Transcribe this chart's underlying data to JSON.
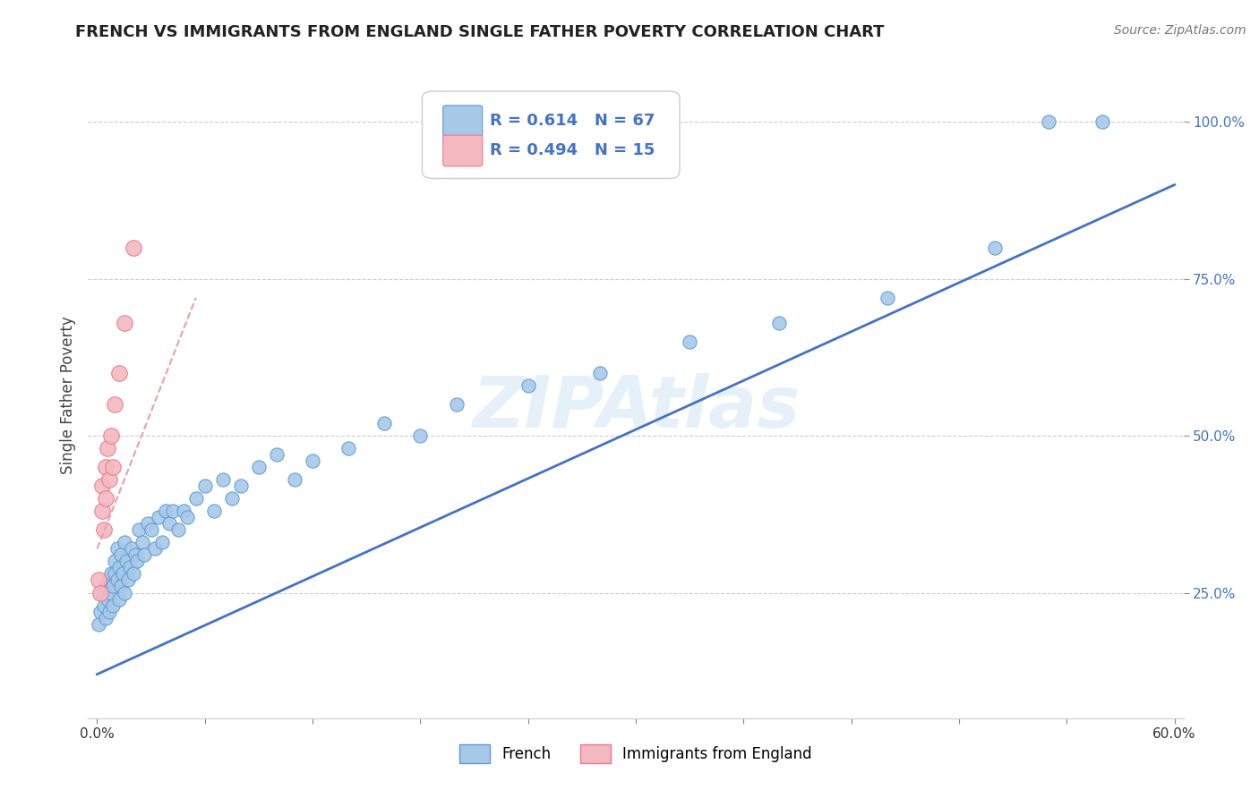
{
  "title": "FRENCH VS IMMIGRANTS FROM ENGLAND SINGLE FATHER POVERTY CORRELATION CHART",
  "source_text": "Source: ZipAtlas.com",
  "ylabel": "Single Father Poverty",
  "watermark": "ZIPAtlas",
  "xlim": [
    -0.005,
    0.605
  ],
  "ylim": [
    0.05,
    1.08
  ],
  "french_color": "#a8c8e8",
  "french_edge_color": "#5b9bd5",
  "pink_color": "#f4b8c1",
  "pink_edge_color": "#e87a8a",
  "trend_blue": "#4472c4",
  "trend_pink": "#e8a0a8",
  "legend_R_blue": "R = 0.614",
  "legend_N_blue": "N = 67",
  "legend_R_pink": "R = 0.494",
  "legend_N_pink": "N = 15",
  "french_x": [
    0.001,
    0.002,
    0.003,
    0.004,
    0.005,
    0.005,
    0.006,
    0.007,
    0.007,
    0.008,
    0.008,
    0.009,
    0.009,
    0.01,
    0.01,
    0.011,
    0.011,
    0.012,
    0.012,
    0.013,
    0.013,
    0.014,
    0.015,
    0.015,
    0.016,
    0.017,
    0.018,
    0.019,
    0.02,
    0.021,
    0.022,
    0.023,
    0.025,
    0.026,
    0.028,
    0.03,
    0.032,
    0.034,
    0.036,
    0.038,
    0.04,
    0.042,
    0.045,
    0.048,
    0.05,
    0.055,
    0.06,
    0.065,
    0.07,
    0.075,
    0.08,
    0.09,
    0.1,
    0.11,
    0.12,
    0.14,
    0.16,
    0.18,
    0.2,
    0.24,
    0.28,
    0.33,
    0.38,
    0.44,
    0.5,
    0.53,
    0.56
  ],
  "french_y": [
    0.2,
    0.22,
    0.25,
    0.23,
    0.21,
    0.26,
    0.24,
    0.22,
    0.27,
    0.25,
    0.28,
    0.26,
    0.23,
    0.28,
    0.3,
    0.27,
    0.32,
    0.24,
    0.29,
    0.31,
    0.26,
    0.28,
    0.25,
    0.33,
    0.3,
    0.27,
    0.29,
    0.32,
    0.28,
    0.31,
    0.3,
    0.35,
    0.33,
    0.31,
    0.36,
    0.35,
    0.32,
    0.37,
    0.33,
    0.38,
    0.36,
    0.38,
    0.35,
    0.38,
    0.37,
    0.4,
    0.42,
    0.38,
    0.43,
    0.4,
    0.42,
    0.45,
    0.47,
    0.43,
    0.46,
    0.48,
    0.52,
    0.5,
    0.55,
    0.58,
    0.6,
    0.65,
    0.68,
    0.72,
    0.8,
    1.0,
    1.0
  ],
  "pink_x": [
    0.001,
    0.002,
    0.003,
    0.003,
    0.004,
    0.005,
    0.005,
    0.006,
    0.007,
    0.008,
    0.009,
    0.01,
    0.012,
    0.015,
    0.02
  ],
  "pink_y": [
    0.27,
    0.25,
    0.38,
    0.42,
    0.35,
    0.4,
    0.45,
    0.48,
    0.43,
    0.5,
    0.45,
    0.55,
    0.6,
    0.68,
    0.8
  ],
  "trend_blue_x0": 0.0,
  "trend_blue_y0": 0.12,
  "trend_blue_x1": 0.6,
  "trend_blue_y1": 0.9,
  "trend_pink_x0": 0.0,
  "trend_pink_y0": 0.32,
  "trend_pink_x1": 0.055,
  "trend_pink_y1": 0.72,
  "figsize": [
    14.06,
    8.92
  ],
  "dpi": 100
}
